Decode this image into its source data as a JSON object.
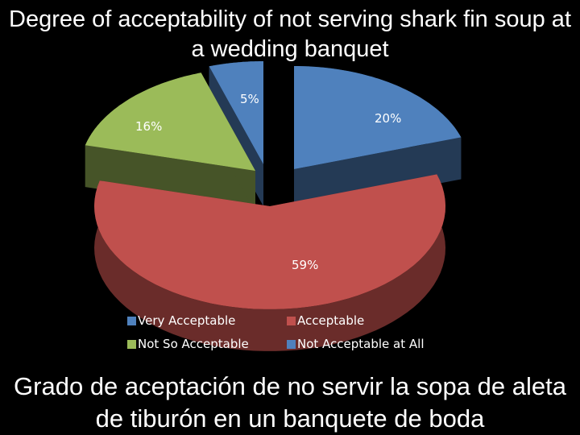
{
  "chart_data": {
    "type": "pie",
    "title": "Degree of acceptability of not serving shark fin soup at a wedding banquet",
    "subtitle": "Grado de aceptación de no servir la sopa de aleta de tiburón en un banquete de boda",
    "slices": [
      {
        "label": "Very Acceptable",
        "value": 20,
        "value_label": "20%",
        "color": "#4f81bd"
      },
      {
        "label": "Acceptable",
        "value": 59,
        "value_label": "59%",
        "color": "#c0504d"
      },
      {
        "label": "Not So Acceptable",
        "value": 16,
        "value_label": "16%",
        "color": "#9bbb59"
      },
      {
        "label": "Not Acceptable at All",
        "value": 5,
        "value_label": "5%",
        "color": "#4f81bd"
      }
    ],
    "legend": {
      "position": "bottom",
      "entries": [
        "Very Acceptable",
        "Acceptable",
        "Not So Acceptable",
        "Not Acceptable at All"
      ]
    },
    "style": "3d-exploded-pie"
  }
}
